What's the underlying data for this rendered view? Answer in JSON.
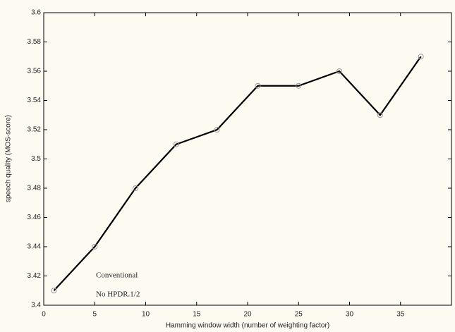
{
  "chart_data": {
    "type": "line",
    "xlabel": "Hamming window width (number of weighting factor)",
    "ylabel": "speech quality (MOS-score)",
    "x": [
      1,
      5,
      9,
      13,
      17,
      21,
      25,
      29,
      33,
      37
    ],
    "series": [
      {
        "color": "#000000",
        "values": [
          3.41,
          3.44,
          3.48,
          3.51,
          3.52,
          3.55,
          3.55,
          3.56,
          3.53,
          3.57
        ]
      }
    ],
    "xlim": [
      0,
      40
    ],
    "xticks": [
      0,
      5,
      10,
      15,
      20,
      25,
      30,
      35
    ],
    "ylim": [
      3.4,
      3.6
    ],
    "yticks": [
      3.4,
      3.42,
      3.44,
      3.46,
      3.48,
      3.5,
      3.52,
      3.54,
      3.56,
      3.58,
      3.6
    ],
    "annotations": [
      "Conventional",
      "No HPDR.1/2"
    ]
  }
}
